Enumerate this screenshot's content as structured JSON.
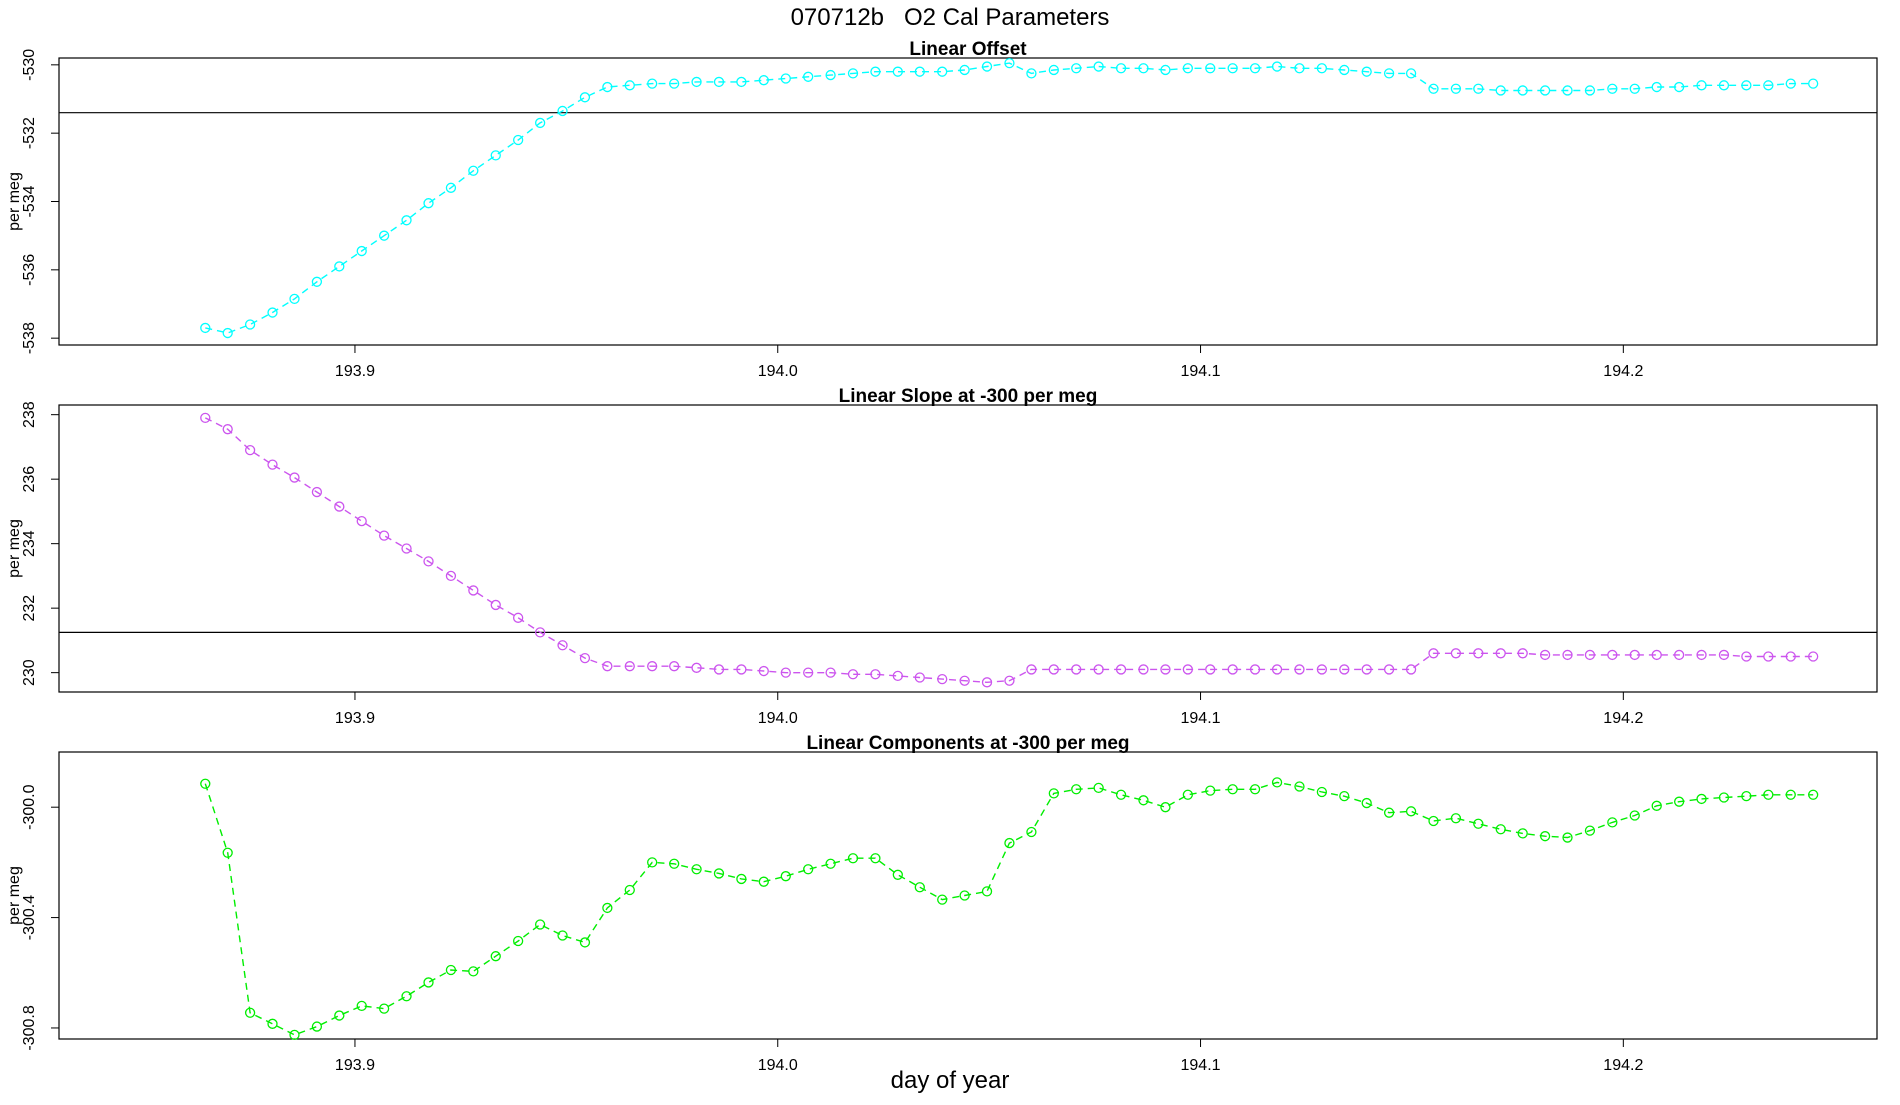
{
  "figure": {
    "title": "070712b   O2 Cal Parameters",
    "xlabel": "day of year"
  },
  "chart_data": [
    {
      "type": "line",
      "title": "Linear Offset",
      "ylabel": "per meg",
      "color": "#00ffff",
      "line_style": "dashed",
      "marker": "open-circle",
      "xlim": [
        193.83,
        194.26
      ],
      "ylim": [
        -538.2,
        -529.8
      ],
      "xticks": [
        193.9,
        194.0,
        194.1,
        194.2
      ],
      "xtick_labels": [
        "193.9",
        "194.0",
        "194.1",
        "194.2"
      ],
      "yticks": [
        -538,
        -536,
        -534,
        -532,
        -530
      ],
      "ytick_labels": [
        "-538",
        "-536",
        "-534",
        "-532",
        "-530"
      ],
      "hline": -531.4,
      "x": [
        193.8646,
        193.8699,
        193.8752,
        193.8805,
        193.8857,
        193.891,
        193.8963,
        193.9016,
        193.9069,
        193.9122,
        193.9174,
        193.9227,
        193.928,
        193.9333,
        193.9386,
        193.9438,
        193.9491,
        193.9544,
        193.9597,
        193.965,
        193.9703,
        193.9755,
        193.9808,
        193.9861,
        193.9914,
        193.9967,
        194.0019,
        194.0072,
        194.0125,
        194.0178,
        194.0231,
        194.0284,
        194.0336,
        194.0389,
        194.0442,
        194.0495,
        194.0548,
        194.06,
        194.0653,
        194.0706,
        194.0759,
        194.0812,
        194.0865,
        194.0917,
        194.097,
        194.1023,
        194.1076,
        194.1129,
        194.1181,
        194.1234,
        194.1287,
        194.134,
        194.1393,
        194.1446,
        194.1498,
        194.1551,
        194.1604,
        194.1657,
        194.171,
        194.1762,
        194.1815,
        194.1868,
        194.1921,
        194.1974,
        194.2027,
        194.2079,
        194.2132,
        194.2185,
        194.2238,
        194.2291,
        194.2343,
        194.2396,
        194.2449
      ],
      "y": [
        -537.7,
        -537.85,
        -537.6,
        -537.25,
        -536.85,
        -536.35,
        -535.9,
        -535.45,
        -535.0,
        -534.55,
        -534.05,
        -533.6,
        -533.1,
        -532.65,
        -532.2,
        -531.7,
        -531.35,
        -530.95,
        -530.65,
        -530.6,
        -530.55,
        -530.55,
        -530.5,
        -530.5,
        -530.5,
        -530.45,
        -530.4,
        -530.35,
        -530.3,
        -530.25,
        -530.2,
        -530.2,
        -530.2,
        -530.2,
        -530.15,
        -530.05,
        -529.95,
        -530.25,
        -530.15,
        -530.1,
        -530.05,
        -530.1,
        -530.1,
        -530.15,
        -530.1,
        -530.1,
        -530.1,
        -530.1,
        -530.05,
        -530.1,
        -530.1,
        -530.15,
        -530.2,
        -530.25,
        -530.25,
        -530.7,
        -530.7,
        -530.7,
        -530.75,
        -530.75,
        -530.75,
        -530.75,
        -530.75,
        -530.7,
        -530.7,
        -530.65,
        -530.65,
        -530.6,
        -530.6,
        -530.6,
        -530.6,
        -530.55,
        -530.55
      ]
    },
    {
      "type": "line",
      "title": "Linear Slope at -300 per meg",
      "ylabel": "per meg",
      "color": "#cc55ee",
      "line_style": "dashed",
      "marker": "open-circle",
      "xlim": [
        193.83,
        194.26
      ],
      "ylim": [
        229.4,
        238.3
      ],
      "xticks": [
        193.9,
        194.0,
        194.1,
        194.2
      ],
      "xtick_labels": [
        "193.9",
        "194.0",
        "194.1",
        "194.2"
      ],
      "yticks": [
        230,
        232,
        234,
        236,
        238
      ],
      "ytick_labels": [
        "230",
        "232",
        "234",
        "236",
        "238"
      ],
      "hline": 231.25,
      "x": [
        193.8646,
        193.8699,
        193.8752,
        193.8805,
        193.8857,
        193.891,
        193.8963,
        193.9016,
        193.9069,
        193.9122,
        193.9174,
        193.9227,
        193.928,
        193.9333,
        193.9386,
        193.9438,
        193.9491,
        193.9544,
        193.9597,
        193.965,
        193.9703,
        193.9755,
        193.9808,
        193.9861,
        193.9914,
        193.9967,
        194.0019,
        194.0072,
        194.0125,
        194.0178,
        194.0231,
        194.0284,
        194.0336,
        194.0389,
        194.0442,
        194.0495,
        194.0548,
        194.06,
        194.0653,
        194.0706,
        194.0759,
        194.0812,
        194.0865,
        194.0917,
        194.097,
        194.1023,
        194.1076,
        194.1129,
        194.1181,
        194.1234,
        194.1287,
        194.134,
        194.1393,
        194.1446,
        194.1498,
        194.1551,
        194.1604,
        194.1657,
        194.171,
        194.1762,
        194.1815,
        194.1868,
        194.1921,
        194.1974,
        194.2027,
        194.2079,
        194.2132,
        194.2185,
        194.2238,
        194.2291,
        194.2343,
        194.2396,
        194.2449
      ],
      "y": [
        237.9,
        237.55,
        236.9,
        236.45,
        236.05,
        235.6,
        235.15,
        234.7,
        234.25,
        233.85,
        233.45,
        233.0,
        232.55,
        232.1,
        231.7,
        231.25,
        230.85,
        230.45,
        230.2,
        230.2,
        230.2,
        230.2,
        230.15,
        230.1,
        230.1,
        230.05,
        230.0,
        230.0,
        230.0,
        229.95,
        229.95,
        229.9,
        229.85,
        229.8,
        229.75,
        229.7,
        229.75,
        230.1,
        230.1,
        230.1,
        230.1,
        230.1,
        230.1,
        230.1,
        230.1,
        230.1,
        230.1,
        230.1,
        230.1,
        230.1,
        230.1,
        230.1,
        230.1,
        230.1,
        230.1,
        230.6,
        230.6,
        230.6,
        230.6,
        230.6,
        230.55,
        230.55,
        230.55,
        230.55,
        230.55,
        230.55,
        230.55,
        230.55,
        230.55,
        230.5,
        230.5,
        230.5,
        230.5
      ]
    },
    {
      "type": "line",
      "title": "Linear Components at -300 per meg",
      "ylabel": "per meg",
      "color": "#00ee00",
      "line_style": "dashed",
      "marker": "open-circle",
      "xlim": [
        193.83,
        194.26
      ],
      "ylim": [
        -300.84,
        -299.8
      ],
      "xticks": [
        193.9,
        194.0,
        194.1,
        194.2
      ],
      "xtick_labels": [
        "193.9",
        "194.0",
        "194.1",
        "194.2"
      ],
      "yticks": [
        -300.8,
        -300.4,
        -300.0
      ],
      "ytick_labels": [
        "-300.8",
        "-300.4",
        "-300.0"
      ],
      "x": [
        193.8646,
        193.8699,
        193.8752,
        193.8805,
        193.8857,
        193.891,
        193.8963,
        193.9016,
        193.9069,
        193.9122,
        193.9174,
        193.9227,
        193.928,
        193.9333,
        193.9386,
        193.9438,
        193.9491,
        193.9544,
        193.9597,
        193.965,
        193.9703,
        193.9755,
        193.9808,
        193.9861,
        193.9914,
        193.9967,
        194.0019,
        194.0072,
        194.0125,
        194.0178,
        194.0231,
        194.0284,
        194.0336,
        194.0389,
        194.0442,
        194.0495,
        194.0548,
        194.06,
        194.0653,
        194.0706,
        194.0759,
        194.0812,
        194.0865,
        194.0917,
        194.097,
        194.1023,
        194.1076,
        194.1129,
        194.1181,
        194.1234,
        194.1287,
        194.134,
        194.1393,
        194.1446,
        194.1498,
        194.1551,
        194.1604,
        194.1657,
        194.171,
        194.1762,
        194.1815,
        194.1868,
        194.1921,
        194.1974,
        194.2027,
        194.2079,
        194.2132,
        194.2185,
        194.2238,
        194.2291,
        194.2343,
        194.2396,
        194.2449
      ],
      "y": [
        -299.915,
        -300.165,
        -300.745,
        -300.785,
        -300.825,
        -300.795,
        -300.755,
        -300.72,
        -300.73,
        -300.685,
        -300.635,
        -300.59,
        -300.595,
        -300.54,
        -300.485,
        -300.425,
        -300.465,
        -300.49,
        -300.365,
        -300.3,
        -300.2,
        -300.205,
        -300.225,
        -300.24,
        -300.26,
        -300.27,
        -300.25,
        -300.225,
        -300.205,
        -300.185,
        -300.185,
        -300.245,
        -300.29,
        -300.335,
        -300.32,
        -300.305,
        -300.13,
        -300.09,
        -299.95,
        -299.935,
        -299.93,
        -299.955,
        -299.975,
        -300.0,
        -299.955,
        -299.94,
        -299.935,
        -299.935,
        -299.91,
        -299.925,
        -299.945,
        -299.96,
        -299.985,
        -300.02,
        -300.015,
        -300.05,
        -300.04,
        -300.06,
        -300.08,
        -300.095,
        -300.105,
        -300.11,
        -300.085,
        -300.055,
        -300.03,
        -299.995,
        -299.98,
        -299.97,
        -299.965,
        -299.96,
        -299.955,
        -299.955,
        -299.955
      ]
    }
  ]
}
